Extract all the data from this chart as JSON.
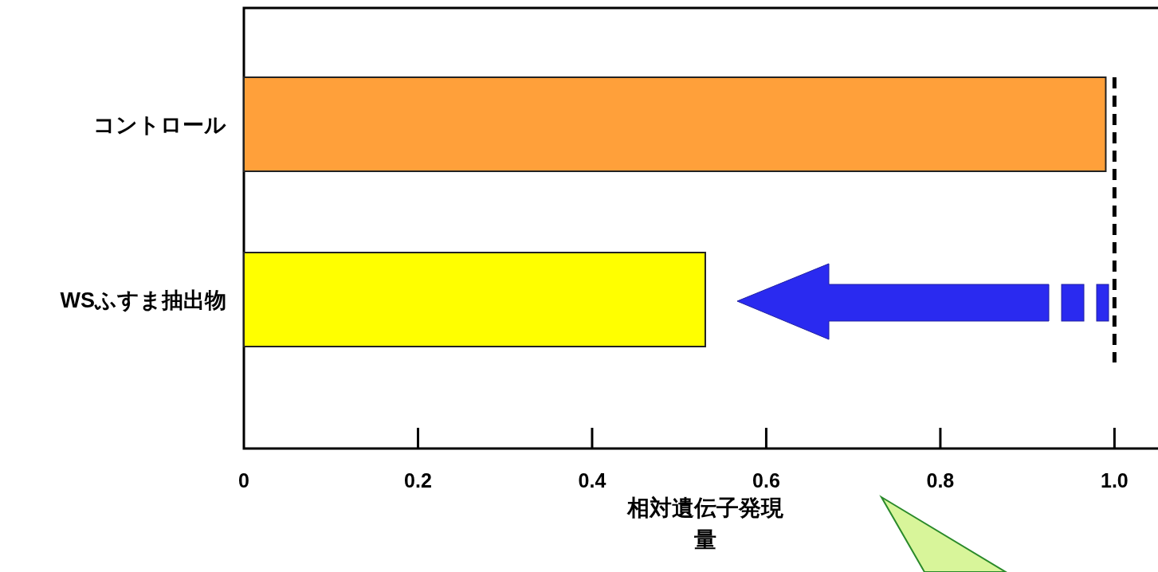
{
  "chart_data": {
    "type": "bar",
    "orientation": "horizontal",
    "categories": [
      "コントロール",
      "WSふすま抽出物"
    ],
    "values": [
      0.99,
      0.53
    ],
    "colors": [
      "#ffa03a",
      "#ffff00"
    ],
    "xlabel": "相対遺伝子発現量",
    "xlim": [
      0,
      1.05
    ],
    "xticks": [
      0,
      0.2,
      0.4,
      0.6,
      0.8,
      {
        "value": 1,
        "label": "1.0"
      }
    ],
    "ref_lines": [
      {
        "axis": "x",
        "value": 1,
        "color": "#000000",
        "line_style": "dashed"
      }
    ]
  }
}
